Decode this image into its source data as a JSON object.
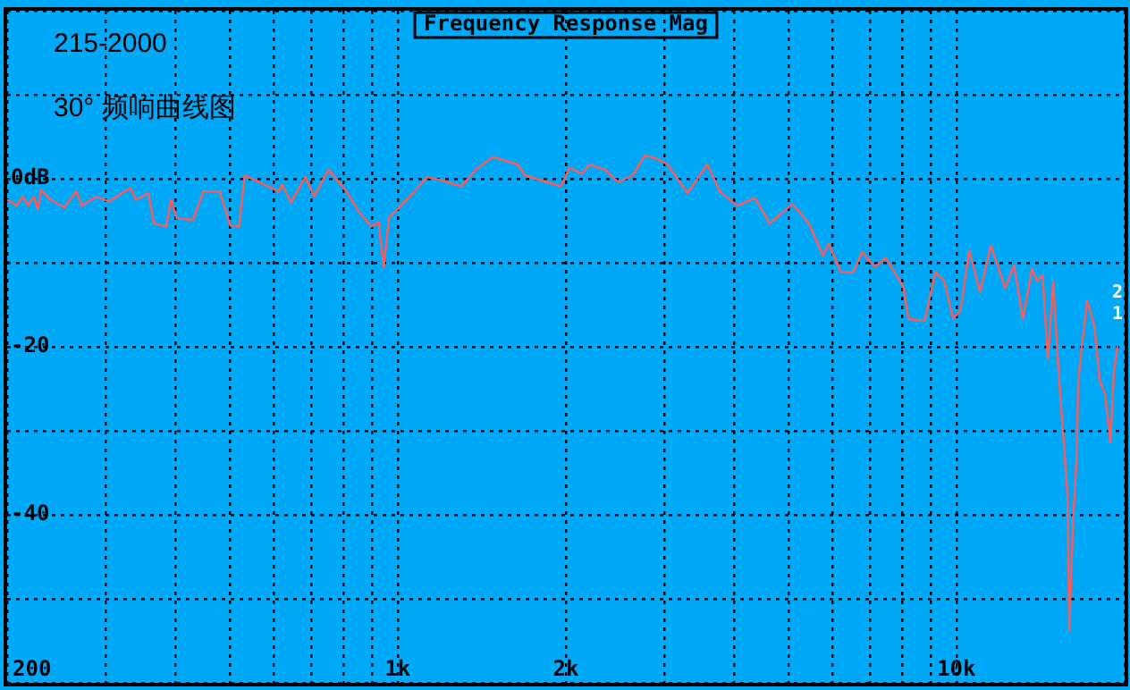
{
  "chart_data": {
    "type": "line",
    "title": "Frequency Response Mag",
    "subtitle": "215-2000",
    "annotations": [
      "30° 频响曲线图",
      "2",
      "1"
    ],
    "x": [
      200,
      208,
      213,
      218,
      223,
      227,
      230,
      239,
      253,
      266,
      272,
      289,
      304,
      332,
      340,
      358,
      366,
      385,
      393,
      402,
      430,
      449,
      480,
      502,
      520,
      532,
      577,
      612,
      621,
      644,
      683,
      709,
      752,
      809,
      852,
      897,
      924,
      944,
      965,
      1000,
      1060,
      1130,
      1200,
      1300,
      1380,
      1480,
      1640,
      1690,
      1850,
      1960,
      2030,
      2140,
      2200,
      2350,
      2480,
      2630,
      2770,
      2930,
      3040,
      3300,
      3580,
      3770,
      4050,
      4360,
      4630,
      5090,
      5440,
      5770,
      5900,
      6210,
      6540,
      6780,
      7140,
      7470,
      8030,
      8210,
      8770,
      9170,
      9510,
      9870,
      10170,
      10540,
      11020,
      11520,
      12220,
      12680,
      13150,
      13650,
      13950,
      14260,
      14580,
      14900,
      15230,
      15810,
      15920,
      16160,
      16400,
      16520,
      16760,
      17140,
      17650,
      18050,
      18450,
      18860,
      19140,
      19420
    ],
    "values": [
      -2.5,
      -3.2,
      -2.1,
      -3.2,
      -2.1,
      -3.6,
      -1.3,
      -2.5,
      -3.4,
      -1.5,
      -3.2,
      -2.1,
      -2.7,
      -1.1,
      -2.5,
      -1.7,
      -5.3,
      -5.7,
      -2.5,
      -4.7,
      -4.9,
      -1.5,
      -1.5,
      -5.6,
      -5.7,
      0.4,
      -0.7,
      -1.5,
      -0.7,
      -2.8,
      0.2,
      -2.1,
      1.1,
      -1.5,
      -3.9,
      -5.7,
      -5.1,
      -10.5,
      -4.6,
      -3.6,
      -1.8,
      0.2,
      -0.2,
      -0.9,
      1.1,
      2.6,
      1.7,
      0.4,
      -0.4,
      -0.9,
      1.3,
      0.6,
      1.7,
      1.1,
      -0.4,
      0.4,
      2.8,
      2.3,
      1.7,
      -1.7,
      1.7,
      -1.5,
      -3.2,
      -2.3,
      -5.3,
      -3.0,
      -5.3,
      -9.2,
      -7.7,
      -11.1,
      -11.1,
      -8.7,
      -10.5,
      -9.4,
      -12.8,
      -16.7,
      -16.9,
      -11.1,
      -12.2,
      -16.7,
      -15.6,
      -8.5,
      -13.5,
      -7.9,
      -13.0,
      -10.3,
      -16.7,
      -10.7,
      -12.2,
      -11.5,
      -21.4,
      -12.2,
      -22.9,
      -37.8,
      -53.8,
      -41.2,
      -33.5,
      -24.1,
      -19.9,
      -14.5,
      -17.5,
      -24.1,
      -25.6,
      -31.4,
      -22.9,
      -19.9
    ],
    "color": "#ff5a5a",
    "marker": "none",
    "log": "x",
    "grid": true,
    "xlim": [
      200,
      20000
    ],
    "ylim": [
      -60,
      20
    ],
    "xticks": [
      {
        "value": 200,
        "label": "200"
      },
      {
        "value": 300,
        "label": null
      },
      {
        "value": 400,
        "label": null
      },
      {
        "value": 500,
        "label": null
      },
      {
        "value": 600,
        "label": null
      },
      {
        "value": 700,
        "label": null
      },
      {
        "value": 800,
        "label": null
      },
      {
        "value": 900,
        "label": null
      },
      {
        "value": 1000,
        "label": "1k"
      },
      {
        "value": 2000,
        "label": "2k"
      },
      {
        "value": 3000,
        "label": null
      },
      {
        "value": 4000,
        "label": null
      },
      {
        "value": 5000,
        "label": null
      },
      {
        "value": 6000,
        "label": null
      },
      {
        "value": 7000,
        "label": null
      },
      {
        "value": 8000,
        "label": null
      },
      {
        "value": 9000,
        "label": null
      },
      {
        "value": 10000,
        "label": "10k"
      },
      {
        "value": 20000,
        "label": null
      }
    ],
    "yticks": [
      {
        "value": -60,
        "label": null
      },
      {
        "value": -50,
        "label": null
      },
      {
        "value": -40,
        "label": "-40"
      },
      {
        "value": -30,
        "label": null
      },
      {
        "value": -20,
        "label": "-20"
      },
      {
        "value": -10,
        "label": null
      },
      {
        "value": 0,
        "label": "0dB"
      },
      {
        "value": 10,
        "label": null
      },
      {
        "value": 20,
        "label": null
      }
    ]
  }
}
